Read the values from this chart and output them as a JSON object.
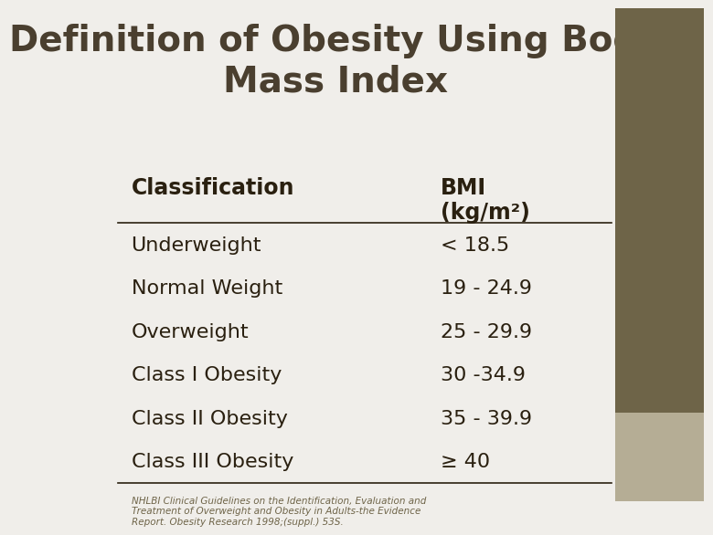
{
  "title": "Definition of Obesity Using Body\nMass Index",
  "title_color": "#4a3f2f",
  "title_fontsize": 28,
  "col1_header": "Classification",
  "col2_header": "BMI\n(kg/m²)",
  "rows": [
    [
      "Underweight",
      "< 18.5"
    ],
    [
      "Normal Weight",
      "19 - 24.9"
    ],
    [
      "Overweight",
      "25 - 29.9"
    ],
    [
      "Class I Obesity",
      "30 -34.9"
    ],
    [
      "Class II Obesity",
      "35 - 39.9"
    ],
    [
      "Class III Obesity",
      "≥ 40"
    ]
  ],
  "footnote": "NHLBI Clinical Guidelines on the Identification, Evaluation and\nTreatment of Overweight and Obesity in Adults-the Evidence\nReport. Obesity Research 1998;(suppl.) 53S.",
  "bg_color": "#f0eeea",
  "right_panel_color": "#6e6448",
  "right_panel_light_color": "#b5ad95",
  "table_text_color": "#2a2010",
  "header_text_color": "#2a2010",
  "footnote_color": "#6e6448",
  "row_fontsize": 16,
  "header_fontsize": 17
}
